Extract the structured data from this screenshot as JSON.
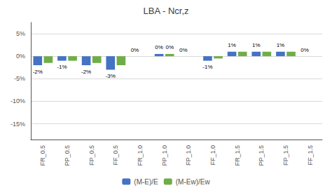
{
  "chart_data": {
    "type": "bar",
    "title": "LBA - Ncr,z",
    "categories": [
      "FR_0.5",
      "PP_0.5",
      "FP_0.5",
      "FF_0.5",
      "FR_1.0",
      "PP_1.0",
      "FP_1.0",
      "FF_1.0",
      "FR_1.5",
      "PP_1.5",
      "FP_1.5",
      "FF_1.5"
    ],
    "series": [
      {
        "name": "(M-E)/E",
        "color": "#4472C4",
        "values": [
          -0.02,
          -0.01,
          -0.02,
          -0.03,
          0.0,
          0.005,
          0.0,
          -0.01,
          0.01,
          0.01,
          0.01,
          0.0
        ],
        "value_labels": [
          "-2%",
          "-1%",
          "-2%",
          "-3%",
          "0%",
          "0%",
          "0%",
          "-1%",
          "1%",
          "1%",
          "1%",
          "0%"
        ]
      },
      {
        "name": "(M-Ew)/Ew",
        "color": "#70AD47",
        "values": [
          -0.015,
          -0.01,
          -0.015,
          -0.02,
          0.0,
          0.005,
          0.0,
          -0.005,
          0.01,
          0.01,
          0.01,
          0.0
        ],
        "value_labels": [
          null,
          null,
          null,
          null,
          null,
          "0%",
          null,
          null,
          null,
          null,
          null,
          null
        ]
      }
    ],
    "ylim": [
      -0.185,
      0.075
    ],
    "yticks": [
      {
        "value": 0.05,
        "label": "5%"
      },
      {
        "value": 0.0,
        "label": "0%"
      },
      {
        "value": -0.05,
        "label": "-5%"
      },
      {
        "value": -0.1,
        "label": "-10%"
      },
      {
        "value": -0.15,
        "label": "-15%"
      }
    ],
    "grid": true,
    "legend": "bottom",
    "data_labels": true
  }
}
